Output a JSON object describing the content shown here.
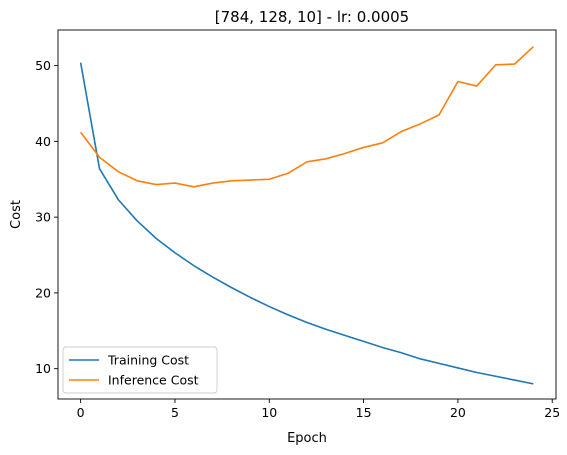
{
  "chart_data": {
    "type": "line",
    "title": "[784, 128, 10] - lr: 0.0005",
    "xlabel": "Epoch",
    "ylabel": "Cost",
    "xlim": [
      -1.2,
      25.2
    ],
    "ylim": [
      6.0,
      54.7
    ],
    "xticks": [
      0,
      5,
      10,
      15,
      20,
      25
    ],
    "yticks": [
      10,
      20,
      30,
      40,
      50
    ],
    "grid": false,
    "legend_position": "lower-left",
    "x": [
      0,
      1,
      2,
      3,
      4,
      5,
      6,
      7,
      8,
      9,
      10,
      11,
      12,
      13,
      14,
      15,
      16,
      17,
      18,
      19,
      20,
      21,
      22,
      23,
      24
    ],
    "series": [
      {
        "name": "Training Cost",
        "color": "#1f77b4",
        "values": [
          50.4,
          36.4,
          32.3,
          29.5,
          27.2,
          25.3,
          23.6,
          22.1,
          20.7,
          19.4,
          18.2,
          17.1,
          16.1,
          15.2,
          14.4,
          13.6,
          12.8,
          12.1,
          11.3,
          10.7,
          10.1,
          9.5,
          9.0,
          8.5,
          8.0
        ]
      },
      {
        "name": "Inference Cost",
        "color": "#ff7f0e",
        "values": [
          41.2,
          37.9,
          36.0,
          34.8,
          34.3,
          34.5,
          34.0,
          34.5,
          34.8,
          34.9,
          35.0,
          35.8,
          37.3,
          37.7,
          38.4,
          39.2,
          39.8,
          41.3,
          42.3,
          43.5,
          47.9,
          47.3,
          50.1,
          50.2,
          52.5
        ]
      }
    ]
  }
}
